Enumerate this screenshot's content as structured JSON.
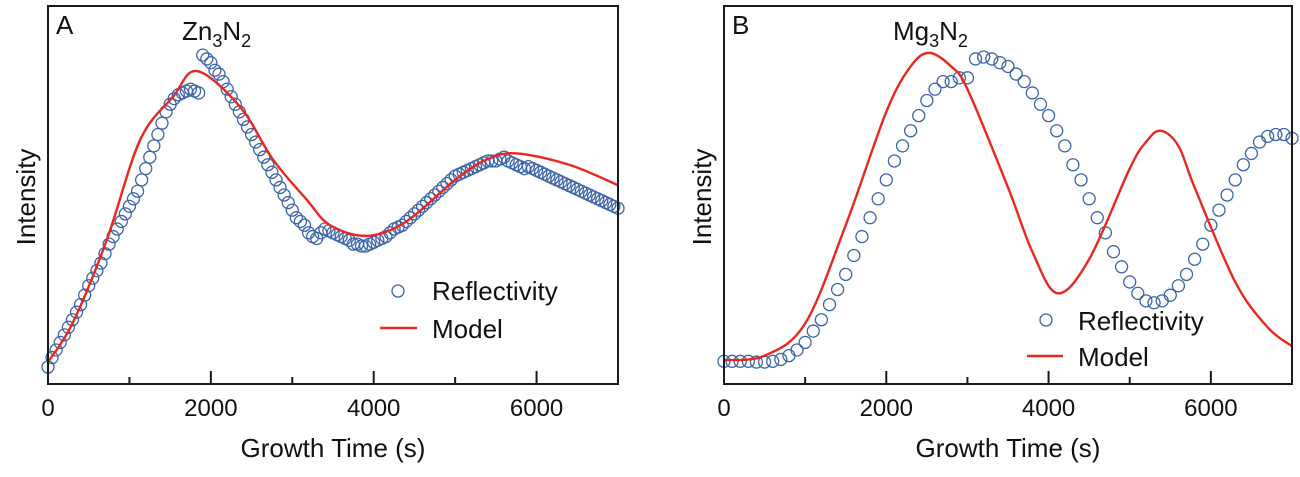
{
  "colors": {
    "reflectivity": "#3c64a8",
    "model": "#e8281e"
  },
  "chart_data": [
    {
      "type": "scatter",
      "panel_label": "A",
      "title": "Zn3N2",
      "title_parts": {
        "base1": "Zn",
        "sub1": "3",
        "base2": "N",
        "sub2": "2"
      },
      "xlabel": "Growth Time (s)",
      "ylabel": "Intensity",
      "xlim": [
        0,
        7000
      ],
      "ylim": [
        0,
        1
      ],
      "xticks_major": [
        0,
        2000,
        4000,
        6000
      ],
      "xticks_minor": [
        1000,
        3000,
        5000,
        7000
      ],
      "xtick_labels": [
        "0",
        "2000",
        "4000",
        "6000"
      ],
      "grid": false,
      "legend": {
        "placement": "lower-right",
        "entries": [
          "Reflectivity",
          "Model"
        ]
      },
      "series": [
        {
          "name": "Reflectivity",
          "style": "open-circle",
          "x_start": 0,
          "x_step": 50,
          "values": [
            0.045,
            0.07,
            0.09,
            0.11,
            0.13,
            0.15,
            0.17,
            0.19,
            0.21,
            0.235,
            0.26,
            0.28,
            0.3,
            0.32,
            0.345,
            0.37,
            0.39,
            0.41,
            0.43,
            0.45,
            0.47,
            0.49,
            0.51,
            0.54,
            0.57,
            0.6,
            0.63,
            0.66,
            0.69,
            0.72,
            0.74,
            0.755,
            0.765,
            0.77,
            0.775,
            0.78,
            0.775,
            0.77,
            0.87,
            0.86,
            0.85,
            0.83,
            0.82,
            0.8,
            0.78,
            0.76,
            0.74,
            0.72,
            0.7,
            0.68,
            0.66,
            0.64,
            0.62,
            0.6,
            0.58,
            0.56,
            0.54,
            0.52,
            0.5,
            0.48,
            0.46,
            0.44,
            0.43,
            0.42,
            0.4,
            0.39,
            0.385,
            0.4,
            0.41,
            0.405,
            0.4,
            0.395,
            0.39,
            0.385,
            0.38,
            0.37,
            0.37,
            0.365,
            0.365,
            0.37,
            0.375,
            0.38,
            0.385,
            0.39,
            0.4,
            0.41,
            0.415,
            0.42,
            0.43,
            0.44,
            0.45,
            0.46,
            0.47,
            0.48,
            0.49,
            0.5,
            0.51,
            0.52,
            0.53,
            0.54,
            0.55,
            0.555,
            0.56,
            0.565,
            0.57,
            0.575,
            0.58,
            0.585,
            0.59,
            0.59,
            0.59,
            0.595,
            0.6,
            0.59,
            0.585,
            0.58,
            0.575,
            0.57,
            0.575,
            0.57,
            0.565,
            0.56,
            0.555,
            0.55,
            0.545,
            0.54,
            0.535,
            0.53,
            0.525,
            0.52,
            0.515,
            0.51,
            0.505,
            0.5,
            0.495,
            0.49,
            0.485,
            0.48,
            0.475,
            0.47,
            0.465
          ]
        },
        {
          "name": "Model",
          "style": "line",
          "x": [
            0,
            300,
            720,
            1130,
            1536,
            1830,
            2360,
            2765,
            3180,
            3464,
            3920,
            4400,
            5000,
            5400,
            5760,
            6400,
            7000
          ],
          "values": [
            0.058,
            0.16,
            0.38,
            0.645,
            0.76,
            0.828,
            0.733,
            0.593,
            0.487,
            0.42,
            0.392,
            0.43,
            0.54,
            0.595,
            0.61,
            0.58,
            0.526
          ]
        }
      ]
    },
    {
      "type": "scatter",
      "panel_label": "B",
      "title": "Mg3N2",
      "title_parts": {
        "base1": "Mg",
        "sub1": "3",
        "base2": "N",
        "sub2": "2"
      },
      "xlabel": "Growth Time (s)",
      "ylabel": "Intensity",
      "xlim": [
        0,
        7000
      ],
      "ylim": [
        0,
        1
      ],
      "xticks_major": [
        0,
        2000,
        4000,
        6000
      ],
      "xticks_minor": [
        1000,
        3000,
        5000,
        7000
      ],
      "xtick_labels": [
        "0",
        "2000",
        "4000",
        "6000"
      ],
      "grid": false,
      "legend": {
        "placement": "lower-right",
        "entries": [
          "Reflectivity",
          "Model"
        ]
      },
      "series": [
        {
          "name": "Reflectivity",
          "style": "open-circle",
          "x_start": 0,
          "x_step": 100,
          "values": [
            0.06,
            0.06,
            0.06,
            0.06,
            0.058,
            0.058,
            0.06,
            0.065,
            0.075,
            0.09,
            0.11,
            0.14,
            0.17,
            0.21,
            0.25,
            0.29,
            0.34,
            0.39,
            0.44,
            0.49,
            0.54,
            0.59,
            0.63,
            0.67,
            0.71,
            0.75,
            0.78,
            0.8,
            0.8,
            0.81,
            0.81,
            0.86,
            0.865,
            0.86,
            0.85,
            0.84,
            0.82,
            0.8,
            0.77,
            0.74,
            0.71,
            0.67,
            0.63,
            0.58,
            0.54,
            0.49,
            0.44,
            0.4,
            0.35,
            0.31,
            0.27,
            0.24,
            0.22,
            0.215,
            0.22,
            0.235,
            0.26,
            0.29,
            0.33,
            0.37,
            0.42,
            0.46,
            0.5,
            0.54,
            0.58,
            0.61,
            0.64,
            0.655,
            0.66,
            0.66,
            0.65
          ]
        },
        {
          "name": "Model",
          "style": "line",
          "x": [
            0,
            500,
            1000,
            1500,
            2000,
            2300,
            2530,
            2800,
            3000,
            3500,
            3800,
            4110,
            4500,
            5000,
            5200,
            5380,
            5600,
            5800,
            6300,
            6700,
            7000
          ],
          "values": [
            0.063,
            0.075,
            0.16,
            0.42,
            0.72,
            0.84,
            0.876,
            0.84,
            0.78,
            0.52,
            0.35,
            0.24,
            0.33,
            0.57,
            0.64,
            0.67,
            0.63,
            0.52,
            0.27,
            0.15,
            0.1
          ]
        }
      ]
    }
  ]
}
